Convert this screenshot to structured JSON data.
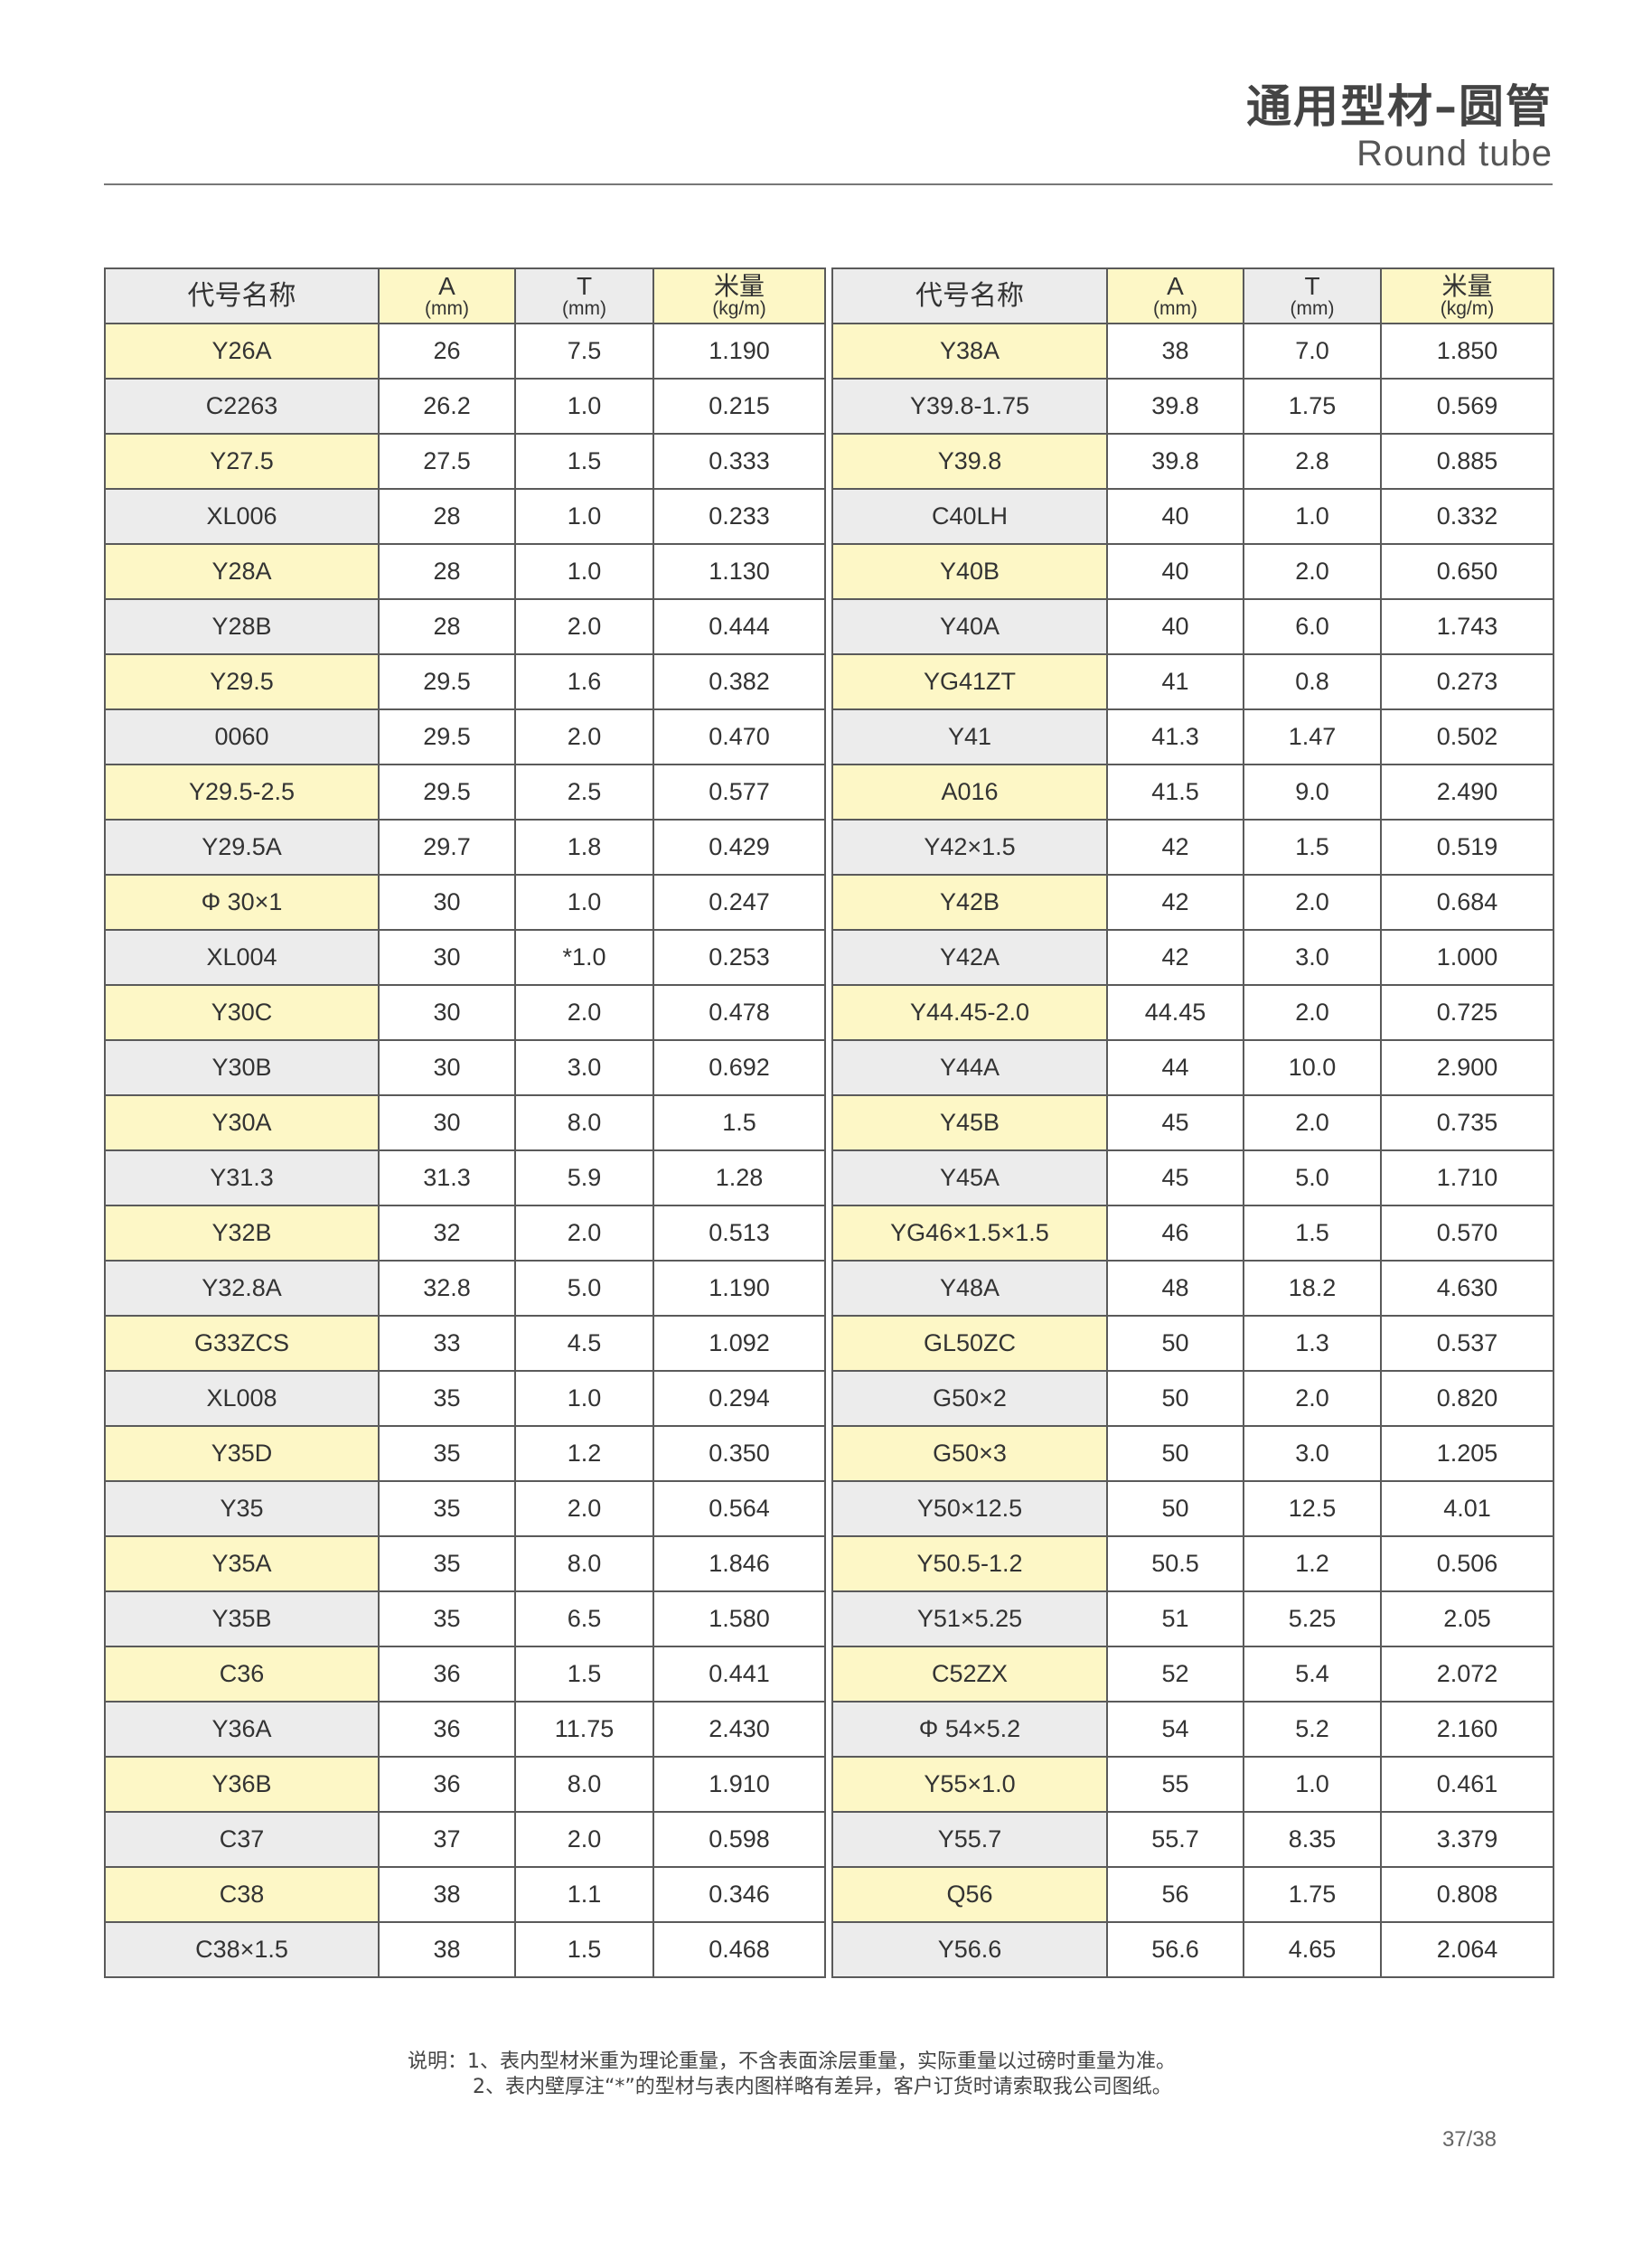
{
  "header": {
    "title_cn": "通用型材–圆管",
    "title_en": "Round tube"
  },
  "table": {
    "columns": [
      {
        "label": "代号名称",
        "unit": ""
      },
      {
        "label": "A",
        "unit": "(mm)"
      },
      {
        "label": "T",
        "unit": "(mm)"
      },
      {
        "label": "米量",
        "unit": "(kg/m)"
      }
    ],
    "left_rows": [
      [
        "Y26A",
        "26",
        "7.5",
        "1.190"
      ],
      [
        "C2263",
        "26.2",
        "1.0",
        "0.215"
      ],
      [
        "Y27.5",
        "27.5",
        "1.5",
        "0.333"
      ],
      [
        "XL006",
        "28",
        "1.0",
        "0.233"
      ],
      [
        "Y28A",
        "28",
        "1.0",
        "1.130"
      ],
      [
        "Y28B",
        "28",
        "2.0",
        "0.444"
      ],
      [
        "Y29.5",
        "29.5",
        "1.6",
        "0.382"
      ],
      [
        "0060",
        "29.5",
        "2.0",
        "0.470"
      ],
      [
        "Y29.5-2.5",
        "29.5",
        "2.5",
        "0.577"
      ],
      [
        "Y29.5A",
        "29.7",
        "1.8",
        "0.429"
      ],
      [
        "Φ 30×1",
        "30",
        "1.0",
        "0.247"
      ],
      [
        "XL004",
        "30",
        "*1.0",
        "0.253"
      ],
      [
        "Y30C",
        "30",
        "2.0",
        "0.478"
      ],
      [
        "Y30B",
        "30",
        "3.0",
        "0.692"
      ],
      [
        "Y30A",
        "30",
        "8.0",
        "1.5"
      ],
      [
        "Y31.3",
        "31.3",
        "5.9",
        "1.28"
      ],
      [
        "Y32B",
        "32",
        "2.0",
        "0.513"
      ],
      [
        "Y32.8A",
        "32.8",
        "5.0",
        "1.190"
      ],
      [
        "G33ZCS",
        "33",
        "4.5",
        "1.092"
      ],
      [
        "XL008",
        "35",
        "1.0",
        "0.294"
      ],
      [
        "Y35D",
        "35",
        "1.2",
        "0.350"
      ],
      [
        "Y35",
        "35",
        "2.0",
        "0.564"
      ],
      [
        "Y35A",
        "35",
        "8.0",
        "1.846"
      ],
      [
        "Y35B",
        "35",
        "6.5",
        "1.580"
      ],
      [
        "C36",
        "36",
        "1.5",
        "0.441"
      ],
      [
        "Y36A",
        "36",
        "11.75",
        "2.430"
      ],
      [
        "Y36B",
        "36",
        "8.0",
        "1.910"
      ],
      [
        "C37",
        "37",
        "2.0",
        "0.598"
      ],
      [
        "C38",
        "38",
        "1.1",
        "0.346"
      ],
      [
        "C38×1.5",
        "38",
        "1.5",
        "0.468"
      ]
    ],
    "right_rows": [
      [
        "Y38A",
        "38",
        "7.0",
        "1.850"
      ],
      [
        "Y39.8-1.75",
        "39.8",
        "1.75",
        "0.569"
      ],
      [
        "Y39.8",
        "39.8",
        "2.8",
        "0.885"
      ],
      [
        "C40LH",
        "40",
        "1.0",
        "0.332"
      ],
      [
        "Y40B",
        "40",
        "2.0",
        "0.650"
      ],
      [
        "Y40A",
        "40",
        "6.0",
        "1.743"
      ],
      [
        "YG41ZT",
        "41",
        "0.8",
        "0.273"
      ],
      [
        "Y41",
        "41.3",
        "1.47",
        "0.502"
      ],
      [
        "A016",
        "41.5",
        "9.0",
        "2.490"
      ],
      [
        "Y42×1.5",
        "42",
        "1.5",
        "0.519"
      ],
      [
        "Y42B",
        "42",
        "2.0",
        "0.684"
      ],
      [
        "Y42A",
        "42",
        "3.0",
        "1.000"
      ],
      [
        "Y44.45-2.0",
        "44.45",
        "2.0",
        "0.725"
      ],
      [
        "Y44A",
        "44",
        "10.0",
        "2.900"
      ],
      [
        "Y45B",
        "45",
        "2.0",
        "0.735"
      ],
      [
        "Y45A",
        "45",
        "5.0",
        "1.710"
      ],
      [
        "YG46×1.5×1.5",
        "46",
        "1.5",
        "0.570"
      ],
      [
        "Y48A",
        "48",
        "18.2",
        "4.630"
      ],
      [
        "GL50ZC",
        "50",
        "1.3",
        "0.537"
      ],
      [
        "G50×2",
        "50",
        "2.0",
        "0.820"
      ],
      [
        "G50×3",
        "50",
        "3.0",
        "1.205"
      ],
      [
        "Y50×12.5",
        "50",
        "12.5",
        "4.01"
      ],
      [
        "Y50.5-1.2",
        "50.5",
        "1.2",
        "0.506"
      ],
      [
        "Y51×5.25",
        "51",
        "5.25",
        "2.05"
      ],
      [
        "C52ZX",
        "52",
        "5.4",
        "2.072"
      ],
      [
        "Φ 54×5.2",
        "54",
        "5.2",
        "2.160"
      ],
      [
        "Y55×1.0",
        "55",
        "1.0",
        "0.461"
      ],
      [
        "Y55.7",
        "55.7",
        "8.35",
        "3.379"
      ],
      [
        "Q56",
        "56",
        "1.75",
        "0.808"
      ],
      [
        "Y56.6",
        "56.6",
        "4.65",
        "2.064"
      ]
    ]
  },
  "notes": [
    "说明：1、表内型材米重为理论重量，不含表面涂层重量，实际重量以过磅时重量为准。",
    "2、表内壁厚注“*”的型材与表内图样略有差异，客户订货时请索取我公司图纸。"
  ],
  "page_number": "37/38",
  "colors": {
    "yellow": "#fdf7c6",
    "gray": "#ececec",
    "border": "#5a5a5a"
  }
}
